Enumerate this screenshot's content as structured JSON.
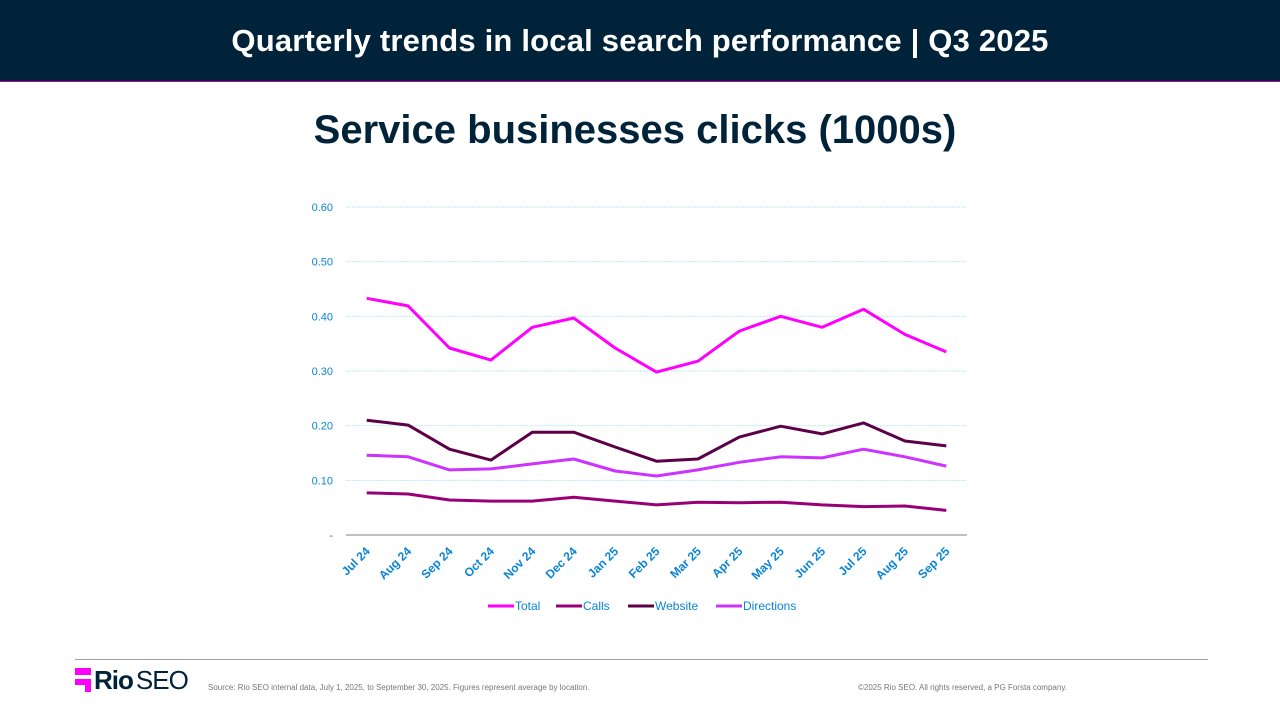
{
  "header": {
    "title": "Quarterly trends in local search performance  |  Q3 2025"
  },
  "footer": {
    "logo_text": "Rio SEO",
    "logo_bold": "Rio",
    "logo_light": "SEO",
    "source": "Source: Rio SEO internal data, July 1, 2025, to September 30, 2025. Figures represent average by location.",
    "copyright": "©2025 Rio SEO. All rights reserved, a PG Forsta company."
  },
  "chart_data": {
    "type": "line",
    "title": "Service businesses clicks (1000s)",
    "xlabel": "",
    "ylabel": "",
    "ylim": [
      0,
      0.6
    ],
    "y_ticks": [
      "-",
      "0.10",
      "0.20",
      "0.30",
      "0.40",
      "0.50",
      "0.60"
    ],
    "y_tick_values": [
      0,
      0.1,
      0.2,
      0.3,
      0.4,
      0.5,
      0.6
    ],
    "grid": true,
    "legend_position": "bottom",
    "categories": [
      "Jul 24",
      "Aug 24",
      "Sep 24",
      "Oct 24",
      "Nov 24",
      "Dec 24",
      "Jan 25",
      "Feb 25",
      "Mar 25",
      "Apr 25",
      "May 25",
      "Jun 25",
      "Jul 25",
      "Aug 25",
      "Sep 25"
    ],
    "series": [
      {
        "name": "Total",
        "color": "#ff00ff",
        "values": [
          0.433,
          0.419,
          0.342,
          0.32,
          0.38,
          0.397,
          0.342,
          0.298,
          0.318,
          0.373,
          0.4,
          0.38,
          0.413,
          0.367,
          0.335
        ]
      },
      {
        "name": "Calls",
        "color": "#990077",
        "values": [
          0.077,
          0.075,
          0.064,
          0.062,
          0.062,
          0.069,
          0.062,
          0.055,
          0.06,
          0.059,
          0.06,
          0.055,
          0.052,
          0.053,
          0.045
        ]
      },
      {
        "name": "Website",
        "color": "#5c0048",
        "values": [
          0.21,
          0.201,
          0.157,
          0.137,
          0.188,
          0.188,
          0.161,
          0.135,
          0.139,
          0.179,
          0.199,
          0.185,
          0.205,
          0.172,
          0.163
        ]
      },
      {
        "name": "Directions",
        "color": "#cc33ff",
        "values": [
          0.146,
          0.143,
          0.119,
          0.121,
          0.13,
          0.139,
          0.117,
          0.108,
          0.119,
          0.133,
          0.143,
          0.141,
          0.157,
          0.143,
          0.126
        ]
      }
    ],
    "colors": {
      "axis_text": "#0a84d6",
      "grid": "#bfe6f7",
      "axis_line": "#808080"
    }
  }
}
